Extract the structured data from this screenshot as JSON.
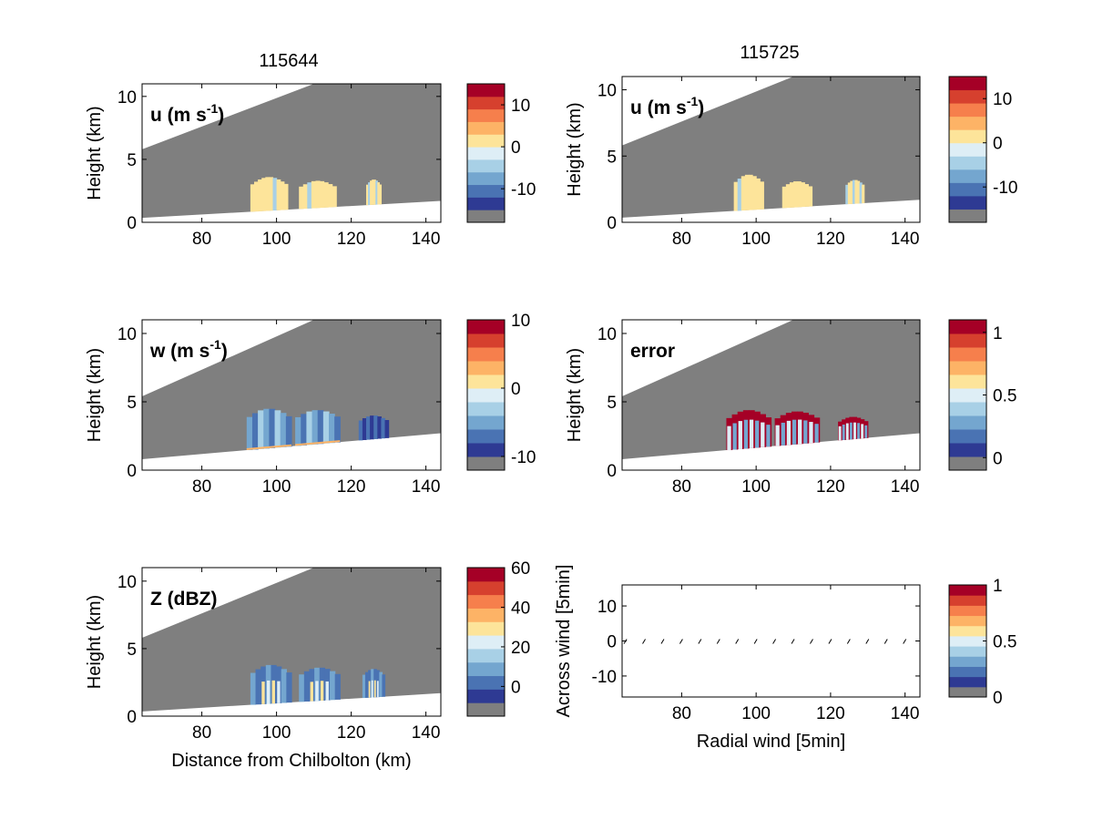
{
  "figure": {
    "col_titles": [
      "115644",
      "115725"
    ]
  },
  "colormap": [
    "#7f7f7f",
    "#2e3a93",
    "#4a73b3",
    "#74a6cf",
    "#a8d0e6",
    "#deeef6",
    "#fde49a",
    "#fdb366",
    "#f67f4c",
    "#d6402e",
    "#a50026"
  ],
  "chart_data": [
    {
      "id": "u-115644",
      "type": "heatmap",
      "title": "115644",
      "label": "u (m s",
      "label_sup": "-1",
      "label_close": ")",
      "ylabel": "Height (km)",
      "xlabel": "",
      "xlim": [
        64,
        144
      ],
      "ylim": [
        0,
        11
      ],
      "xticks": [
        80,
        100,
        120,
        140
      ],
      "yticks": [
        0,
        5,
        10
      ],
      "beam_top": [
        [
          64,
          5.8
        ],
        [
          110,
          11
        ]
      ],
      "ground": [
        [
          64,
          0.35
        ],
        [
          144,
          1.7
        ]
      ],
      "cells": [
        {
          "x": [
            93,
            103
          ],
          "top": 3.6,
          "values": [
            "+",
            "+",
            "+",
            "+",
            "+",
            "+",
            "-",
            "+",
            "+",
            "+"
          ]
        },
        {
          "x": [
            106,
            116
          ],
          "top": 3.3,
          "values": [
            "+",
            "+",
            "-",
            "+",
            "+",
            "+",
            "+",
            "+",
            "+"
          ]
        },
        {
          "x": [
            124,
            128
          ],
          "top": 3.4,
          "values": [
            "+",
            "-",
            "+",
            "+"
          ]
        }
      ],
      "colorbar": {
        "ticks": [
          10,
          0,
          -10
        ],
        "range": [
          -18,
          15
        ]
      }
    },
    {
      "id": "u-115725",
      "type": "heatmap",
      "title": "115725",
      "label": "u (m s",
      "label_sup": "-1",
      "label_close": ")",
      "ylabel": "Height (km)",
      "xlabel": "",
      "xlim": [
        64,
        144
      ],
      "ylim": [
        0,
        11
      ],
      "xticks": [
        80,
        100,
        120,
        140
      ],
      "yticks": [
        0,
        5,
        10
      ],
      "beam_top": [
        [
          64,
          5.8
        ],
        [
          110,
          11
        ]
      ],
      "ground": [
        [
          64,
          0.35
        ],
        [
          144,
          1.7
        ]
      ],
      "cells": [
        {
          "x": [
            94,
            102
          ],
          "top": 3.6,
          "values": [
            "+",
            "-",
            "+",
            "+",
            "+",
            "+",
            "+",
            "+"
          ]
        },
        {
          "x": [
            107,
            115
          ],
          "top": 3.1,
          "values": [
            "+",
            "+",
            "+",
            "+",
            "+",
            "+",
            "+"
          ]
        },
        {
          "x": [
            124,
            129
          ],
          "top": 3.2,
          "values": [
            "-",
            "+",
            "+"
          ]
        }
      ],
      "colorbar": {
        "ticks": [
          10,
          0,
          -10
        ],
        "range": [
          -18,
          15
        ]
      }
    },
    {
      "id": "w-115644",
      "type": "heatmap",
      "label": "w (m s",
      "label_sup": "-1",
      "label_close": ")",
      "ylabel": "Height (km)",
      "xlabel": "",
      "xlim": [
        64,
        144
      ],
      "ylim": [
        0,
        11
      ],
      "xticks": [
        80,
        100,
        120,
        140
      ],
      "yticks": [
        0,
        5,
        10
      ],
      "beam_top": [
        [
          64,
          5.4
        ],
        [
          110,
          11
        ]
      ],
      "ground": [
        [
          64,
          0.8
        ],
        [
          144,
          2.7
        ]
      ],
      "cells": [
        {
          "x": [
            92,
            104
          ],
          "top": 4.5,
          "values": [
            "blue"
          ]
        },
        {
          "x": [
            105,
            117
          ],
          "top": 4.4,
          "values": [
            "blue"
          ]
        },
        {
          "x": [
            122,
            130
          ],
          "top": 4.0,
          "values": [
            "dark"
          ]
        }
      ],
      "colorbar": {
        "ticks": [
          10,
          0,
          -10
        ],
        "range": [
          -12,
          10
        ]
      }
    },
    {
      "id": "error-115725",
      "type": "heatmap",
      "label": "error",
      "label_sup": "",
      "label_close": "",
      "ylabel": "Height (km)",
      "xlabel": "",
      "xlim": [
        64,
        144
      ],
      "ylim": [
        0,
        11
      ],
      "xticks": [
        80,
        100,
        120,
        140
      ],
      "yticks": [
        0,
        5,
        10
      ],
      "beam_top": [
        [
          64,
          5.4
        ],
        [
          110,
          11
        ]
      ],
      "ground": [
        [
          64,
          0.8
        ],
        [
          144,
          2.7
        ]
      ],
      "cells": [
        {
          "x": [
            92,
            104
          ],
          "top": 4.4,
          "values": [
            "err"
          ]
        },
        {
          "x": [
            105,
            117
          ],
          "top": 4.3,
          "values": [
            "err"
          ]
        },
        {
          "x": [
            122,
            130
          ],
          "top": 3.9,
          "values": [
            "err"
          ]
        }
      ],
      "colorbar": {
        "ticks": [
          1,
          0.5,
          0
        ],
        "range": [
          -0.1,
          1.1
        ]
      }
    },
    {
      "id": "Z-115644",
      "type": "heatmap",
      "label": "Z (dBZ)",
      "label_sup": "",
      "label_close": "",
      "ylabel": "Height (km)",
      "xlabel": "Distance from Chilbolton (km)",
      "xlim": [
        64,
        144
      ],
      "ylim": [
        0,
        11
      ],
      "xticks": [
        80,
        100,
        120,
        140
      ],
      "yticks": [
        0,
        5,
        10
      ],
      "beam_top": [
        [
          64,
          5.8
        ],
        [
          110,
          11
        ]
      ],
      "ground": [
        [
          64,
          0.35
        ],
        [
          144,
          1.7
        ]
      ],
      "cells": [
        {
          "x": [
            93,
            104
          ],
          "top": 3.8,
          "values": [
            "refl"
          ]
        },
        {
          "x": [
            106,
            117
          ],
          "top": 3.6,
          "values": [
            "refl"
          ]
        },
        {
          "x": [
            123,
            129
          ],
          "top": 3.5,
          "values": [
            "refl"
          ]
        }
      ],
      "colorbar": {
        "ticks": [
          60,
          40,
          20,
          0
        ],
        "range": [
          -15,
          60
        ]
      }
    },
    {
      "id": "vector-115725",
      "type": "scatter",
      "label": "",
      "label_sup": "",
      "label_close": "",
      "ylabel": "Across wind [5min]",
      "xlabel": "Radial wind [5min]",
      "xlim": [
        64,
        144
      ],
      "ylim": [
        -16,
        16
      ],
      "xticks": [
        80,
        100,
        120,
        140
      ],
      "yticks": [
        10,
        0,
        -10
      ],
      "points": [
        65,
        70,
        75,
        80,
        85,
        90,
        95,
        100,
        105,
        110,
        115,
        120,
        125,
        130,
        135,
        140
      ],
      "y": 0,
      "colorbar": {
        "ticks": [
          1,
          0.5,
          0
        ],
        "range": [
          0,
          1
        ]
      }
    }
  ]
}
